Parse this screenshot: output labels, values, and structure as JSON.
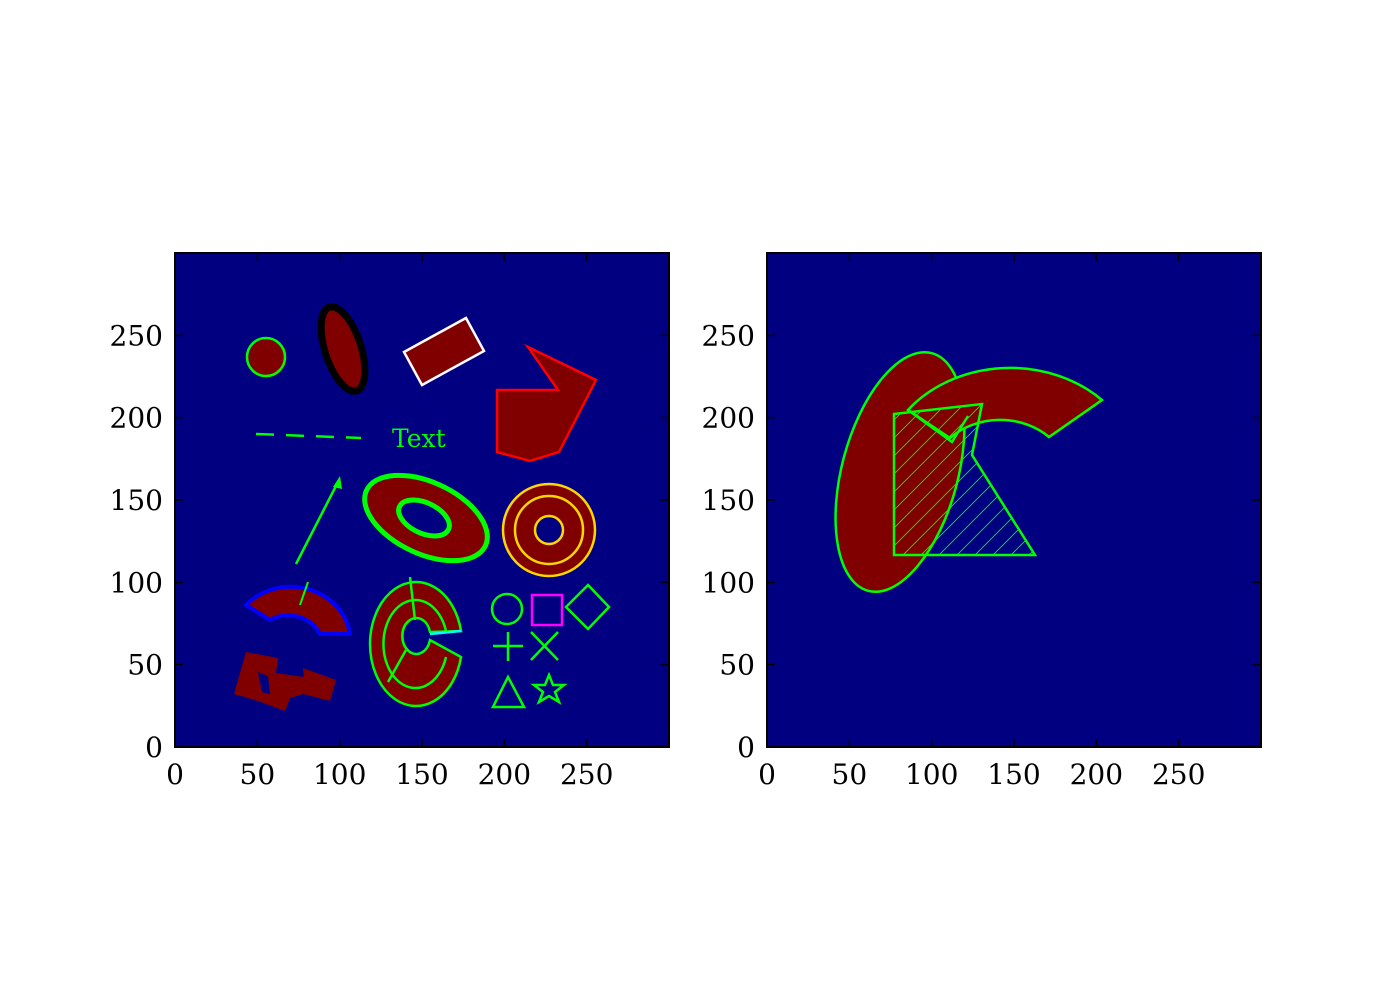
{
  "colors": {
    "axes_background": "#000080",
    "fill": "#800000",
    "green": "#00ff00",
    "white": "#ffffff",
    "red": "#ff0000",
    "black": "#000000",
    "blue": "#0000ff",
    "yellow": "#ffd700",
    "magenta": "#ff00ff",
    "cyan": "#00ffff"
  },
  "axes": [
    {
      "name": "left-axes",
      "xlim": [
        0,
        300
      ],
      "ylim": [
        0,
        300
      ],
      "xticks": [
        0,
        50,
        100,
        150,
        200,
        250
      ],
      "yticks": [
        0,
        50,
        100,
        150,
        200,
        250
      ]
    },
    {
      "name": "right-axes",
      "xlim": [
        0,
        300
      ],
      "ylim": [
        0,
        300
      ],
      "xticks": [
        0,
        50,
        100,
        150,
        200,
        250
      ],
      "yticks": [
        0,
        50,
        100,
        150,
        200,
        250
      ]
    }
  ],
  "labels": {
    "text_annotation": "Text"
  },
  "shapes_left": [
    "circle",
    "ellipse-black-outline",
    "rotated-rectangle",
    "polygon-red",
    "dashed-line",
    "text",
    "arrow",
    "elliptical-annulus",
    "circular-annulus",
    "wedge-blue",
    "wedge-green",
    "filled-region",
    "marker-circle",
    "marker-square",
    "marker-diamond",
    "marker-plus",
    "marker-x",
    "marker-triangle",
    "marker-star"
  ],
  "shapes_right": [
    "ellipse",
    "annulus-arc",
    "hatched-polygon"
  ]
}
